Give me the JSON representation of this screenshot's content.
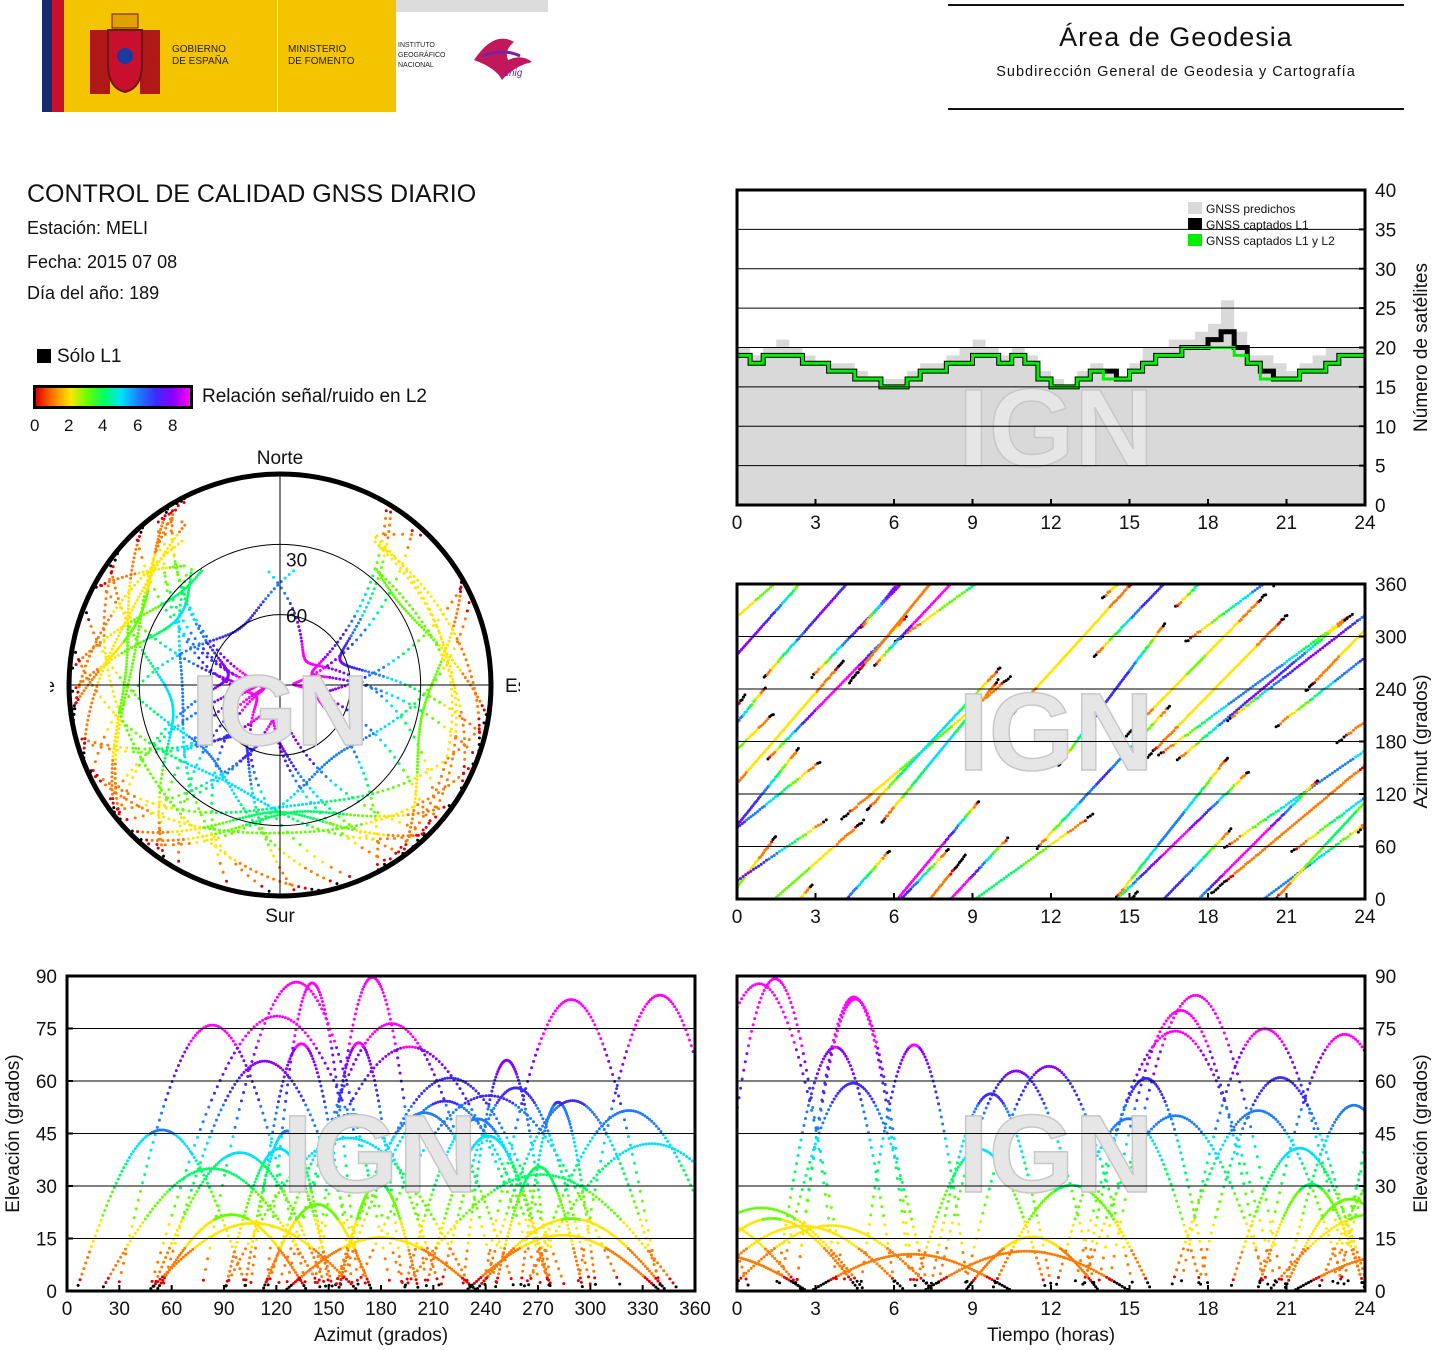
{
  "header": {
    "gov_line1": "GOBIERNO",
    "gov_line2": "DE ESPAÑA",
    "ministry_line1": "MINISTERIO",
    "ministry_line2": "DE FOMENTO",
    "ign_line1": "INSTITUTO",
    "ign_line2": "GEOGRÁFICO",
    "ign_line3": "NACIONAL",
    "cnig": "cnig",
    "area_title": "Área de Geodesia",
    "area_subtitle": "Subdirección General de Geodesia y Cartografía"
  },
  "info": {
    "title": "CONTROL DE CALIDAD GNSS DIARIO",
    "station": "Estación: MELI",
    "date": "Fecha: 2015 07 08",
    "doy": "Día del año: 189"
  },
  "legend": {
    "solo_l1": "Sólo L1",
    "snr_label": "Relación señal/ruido en L2",
    "snr_ticks": [
      "0",
      "2",
      "4",
      "6",
      "8"
    ],
    "colors": {
      "l1_only": "#000000",
      "predicted": "#d9d9d9",
      "captured_l1_l2": "#00ee00"
    }
  },
  "watermark": "IGN",
  "chart_data": [
    {
      "type": "scatter",
      "subtype": "skyplot",
      "labels": {
        "north": "Norte",
        "south": "Sur",
        "west": "Oeste",
        "east": "Este"
      },
      "elevation_rings": [
        "30",
        "60"
      ],
      "color_scale": "SNR L2 0-8"
    },
    {
      "type": "area",
      "ylabel": "Número de satélites",
      "xlim": [
        0,
        24
      ],
      "ylim": [
        0,
        40
      ],
      "x_ticks": [
        "0",
        "3",
        "6",
        "9",
        "12",
        "15",
        "18",
        "21",
        "24"
      ],
      "y_ticks": [
        "0",
        "5",
        "10",
        "15",
        "20",
        "25",
        "30",
        "35",
        "40"
      ],
      "legend": [
        "GNSS predichos",
        "GNSS captados L1",
        "GNSS captados L1 y L2"
      ],
      "legend_position": "top-right",
      "grid": true,
      "series": [
        {
          "name": "GNSS predichos",
          "x": [
            0,
            0.5,
            1,
            1.5,
            2,
            2.5,
            3,
            3.5,
            4,
            4.5,
            5,
            5.5,
            6,
            6.5,
            7,
            7.5,
            8,
            8.5,
            9,
            9.5,
            10,
            10.5,
            11,
            11.5,
            12,
            12.5,
            13,
            13.5,
            14,
            14.5,
            15,
            15.5,
            16,
            16.5,
            17,
            17.5,
            18,
            18.5,
            19,
            19.5,
            20,
            20.5,
            21,
            21.5,
            22,
            22.5,
            23,
            23.5,
            24
          ],
          "values": [
            20,
            19,
            20,
            21,
            20,
            19,
            18,
            18,
            18,
            17,
            16,
            16,
            16,
            17,
            18,
            18,
            19,
            20,
            21,
            20,
            19,
            20,
            19,
            17,
            16,
            15,
            17,
            18,
            17,
            16,
            18,
            20,
            20,
            21,
            21,
            22,
            23,
            26,
            22,
            19,
            19,
            18,
            17,
            18,
            19,
            20,
            20,
            20,
            20
          ]
        },
        {
          "name": "GNSS captados L1",
          "x": [
            0,
            0.5,
            1,
            1.5,
            2,
            2.5,
            3,
            3.5,
            4,
            4.5,
            5,
            5.5,
            6,
            6.5,
            7,
            7.5,
            8,
            8.5,
            9,
            9.5,
            10,
            10.5,
            11,
            11.5,
            12,
            12.5,
            13,
            13.5,
            14,
            14.5,
            15,
            15.5,
            16,
            16.5,
            17,
            17.5,
            18,
            18.5,
            19,
            19.5,
            20,
            20.5,
            21,
            21.5,
            22,
            22.5,
            23,
            23.5,
            24
          ],
          "values": [
            19,
            18,
            19,
            19,
            19,
            18,
            18,
            17,
            17,
            16,
            16,
            15,
            15,
            16,
            17,
            17,
            18,
            18,
            19,
            19,
            18,
            19,
            18,
            16,
            15,
            15,
            16,
            17,
            17,
            16,
            17,
            18,
            19,
            19,
            20,
            20,
            21,
            22,
            20,
            18,
            17,
            16,
            16,
            17,
            17,
            18,
            19,
            19,
            19
          ]
        },
        {
          "name": "GNSS captados L1 y L2",
          "x": [
            0,
            0.5,
            1,
            1.5,
            2,
            2.5,
            3,
            3.5,
            4,
            4.5,
            5,
            5.5,
            6,
            6.5,
            7,
            7.5,
            8,
            8.5,
            9,
            9.5,
            10,
            10.5,
            11,
            11.5,
            12,
            12.5,
            13,
            13.5,
            14,
            14.5,
            15,
            15.5,
            16,
            16.5,
            17,
            17.5,
            18,
            18.5,
            19,
            19.5,
            20,
            20.5,
            21,
            21.5,
            22,
            22.5,
            23,
            23.5,
            24
          ],
          "values": [
            19,
            18,
            19,
            19,
            19,
            18,
            18,
            17,
            17,
            16,
            16,
            15,
            15,
            16,
            17,
            17,
            18,
            18,
            19,
            19,
            18,
            19,
            18,
            16,
            15,
            15,
            16,
            17,
            16,
            16,
            17,
            18,
            19,
            19,
            20,
            20,
            20,
            20,
            19,
            18,
            16,
            16,
            16,
            17,
            17,
            18,
            19,
            19,
            19
          ]
        }
      ]
    },
    {
      "type": "scatter",
      "ylabel": "Azimut (grados)",
      "xlim": [
        0,
        24
      ],
      "ylim": [
        0,
        360
      ],
      "x_ticks": [
        "0",
        "3",
        "6",
        "9",
        "12",
        "15",
        "18",
        "21",
        "24"
      ],
      "y_ticks": [
        "0",
        "60",
        "120",
        "180",
        "240",
        "300",
        "360"
      ],
      "grid": true
    },
    {
      "type": "scatter",
      "xlabel": "Azimut (grados)",
      "ylabel": "Elevación (grados)",
      "xlim": [
        0,
        360
      ],
      "ylim": [
        0,
        90
      ],
      "x_ticks": [
        "0",
        "30",
        "60",
        "90",
        "120",
        "150",
        "180",
        "210",
        "240",
        "270",
        "300",
        "330",
        "360"
      ],
      "y_ticks": [
        "0",
        "15",
        "30",
        "45",
        "60",
        "75",
        "90"
      ],
      "grid": true
    },
    {
      "type": "scatter",
      "xlabel": "Tiempo (horas)",
      "ylabel": "Elevación (grados)",
      "xlim": [
        0,
        24
      ],
      "ylim": [
        0,
        90
      ],
      "x_ticks": [
        "0",
        "3",
        "6",
        "9",
        "12",
        "15",
        "18",
        "21",
        "24"
      ],
      "y_ticks": [
        "0",
        "15",
        "30",
        "45",
        "60",
        "75",
        "90"
      ],
      "grid": true
    }
  ]
}
